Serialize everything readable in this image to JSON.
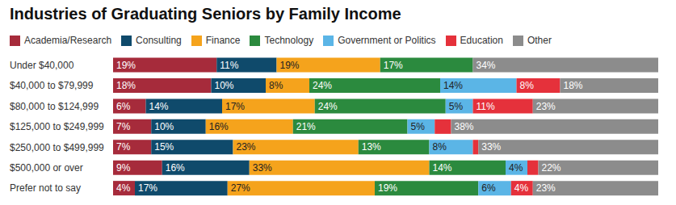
{
  "chart_data": {
    "type": "bar",
    "title": "Industries of Graduating Seniors by Family Income",
    "orientation": "horizontal",
    "stacked": true,
    "data_labels": true,
    "legend": "top-left",
    "tick_labels": "y",
    "grid": false,
    "categories": [
      "Under $40,000",
      "$40,000 to $79,999",
      "$80,000 to $124,999",
      "$125,000 to $249,999",
      "$250,000 to $499,999",
      "$500,000 or over",
      "Prefer not to say"
    ],
    "xlim": [
      0,
      100
    ],
    "xticks": [
      0,
      100
    ],
    "series": [
      {
        "name": "Academia/Research",
        "color": "#a62b3b",
        "values": [
          19,
          18,
          6,
          7,
          7,
          9,
          4
        ],
        "value_labels": [
          "19%",
          "18%",
          "6%",
          "7%",
          "7%",
          "9%",
          "4%"
        ]
      },
      {
        "name": "Consulting",
        "color": "#0f4a6b",
        "values": [
          11,
          10,
          14,
          10,
          15,
          16,
          17
        ],
        "value_labels": [
          "11%",
          "10%",
          "14%",
          "10%",
          "15%",
          "16%",
          "17%"
        ]
      },
      {
        "name": "Finance",
        "color": "#f5a31c",
        "values": [
          19,
          8,
          17,
          16,
          23,
          33,
          27
        ],
        "value_labels": [
          "19%",
          "8%",
          "17%",
          "16%",
          "23%",
          "33%",
          "27%"
        ]
      },
      {
        "name": "Technology",
        "color": "#2b8a3e",
        "values": [
          17,
          24,
          24,
          21,
          13,
          14,
          19
        ],
        "value_labels": [
          "17%",
          "24%",
          "24%",
          "21%",
          "13%",
          "14%",
          "19%"
        ]
      },
      {
        "name": "Government or Politics",
        "color": "#5bb5e6",
        "values": [
          0,
          14,
          5,
          5,
          8,
          4,
          6
        ],
        "value_labels": [
          null,
          "14%",
          "5%",
          "5%",
          "8%",
          "4%",
          "6%"
        ]
      },
      {
        "name": "Education",
        "color": "#e5313b",
        "values": [
          0,
          8,
          11,
          3,
          1,
          2,
          4
        ],
        "value_labels": [
          null,
          "8%",
          "11%",
          null,
          null,
          null,
          "4%"
        ]
      },
      {
        "name": "Other",
        "color": "#8c8c8c",
        "values": [
          34,
          18,
          23,
          38,
          33,
          22,
          23
        ],
        "value_labels": [
          "34%",
          "18%",
          "23%",
          "38%",
          "33%",
          "22%",
          "23%"
        ]
      }
    ]
  }
}
